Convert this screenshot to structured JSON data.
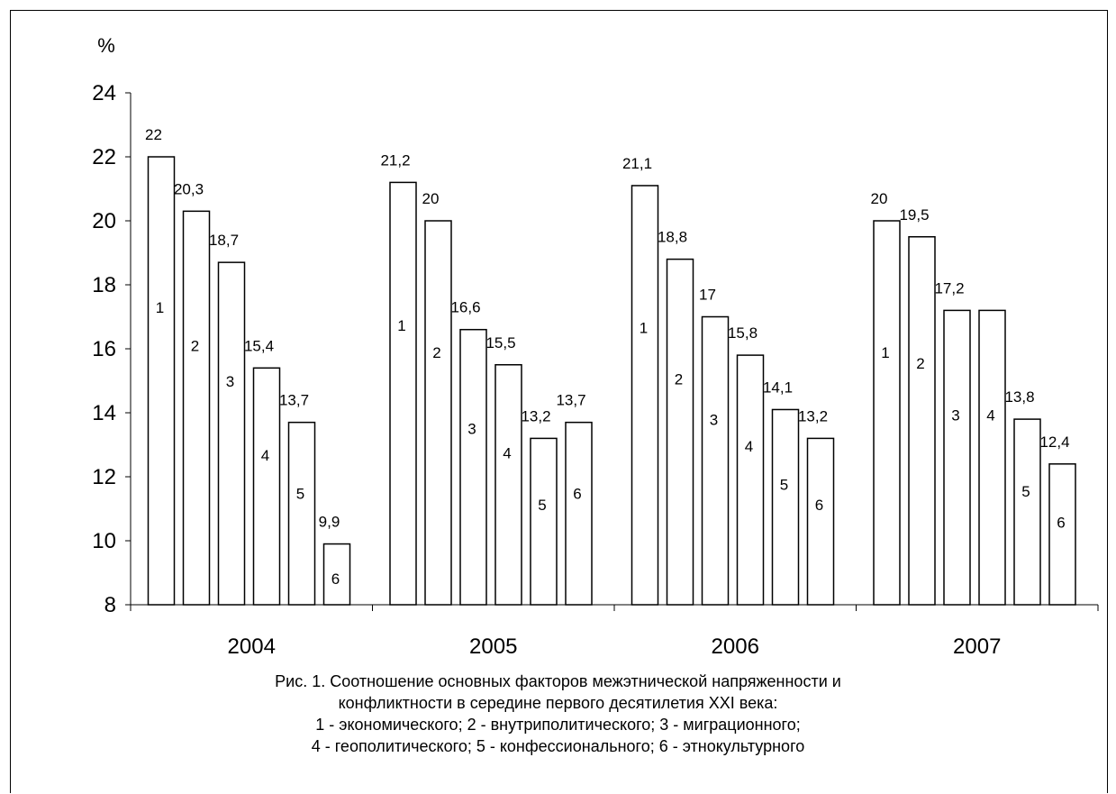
{
  "chart_data": {
    "type": "bar",
    "unit_label": "%",
    "ylim": [
      8,
      24
    ],
    "yticks": [
      8,
      10,
      12,
      14,
      16,
      18,
      20,
      22,
      24
    ],
    "categories": [
      "2004",
      "2005",
      "2006",
      "2007"
    ],
    "series": [
      {
        "index_label": "1",
        "values": [
          22,
          21.2,
          21.1,
          20
        ],
        "labels": [
          "22",
          "21,2",
          "21,1",
          "20"
        ]
      },
      {
        "index_label": "2",
        "values": [
          20.3,
          20,
          18.8,
          19.5
        ],
        "labels": [
          "20,3",
          "20",
          "18,8",
          "19,5"
        ]
      },
      {
        "index_label": "3",
        "values": [
          18.7,
          16.6,
          17,
          17.2
        ],
        "labels": [
          "18,7",
          "16,6",
          "17",
          "17,2"
        ]
      },
      {
        "index_label": "4",
        "values": [
          15.4,
          15.5,
          15.8,
          17.2
        ],
        "labels": [
          "15,4",
          "15,5",
          "15,8",
          ""
        ]
      },
      {
        "index_label": "5",
        "values": [
          13.7,
          13.2,
          14.1,
          13.8
        ],
        "labels": [
          "13,7",
          "13,2",
          "14,1",
          "13,8"
        ]
      },
      {
        "index_label": "6",
        "values": [
          9.9,
          13.7,
          13.2,
          12.4
        ],
        "labels": [
          "9,9",
          "13,7",
          "13,2",
          "12,4"
        ]
      }
    ],
    "bar_fill": "#ffffff",
    "bar_stroke": "#000000",
    "grid": false,
    "legend": "none",
    "caption": [
      "Рис. 1. Соотношение основных факторов межэтнической напряженности и",
      "конфликтности в середине первого десятилетия XXI века:",
      "1 - экономического; 2 - внутриполитического; 3 - миграционного;",
      "4 - геополитического; 5 - конфессионального; 6 - этнокультурного"
    ]
  }
}
